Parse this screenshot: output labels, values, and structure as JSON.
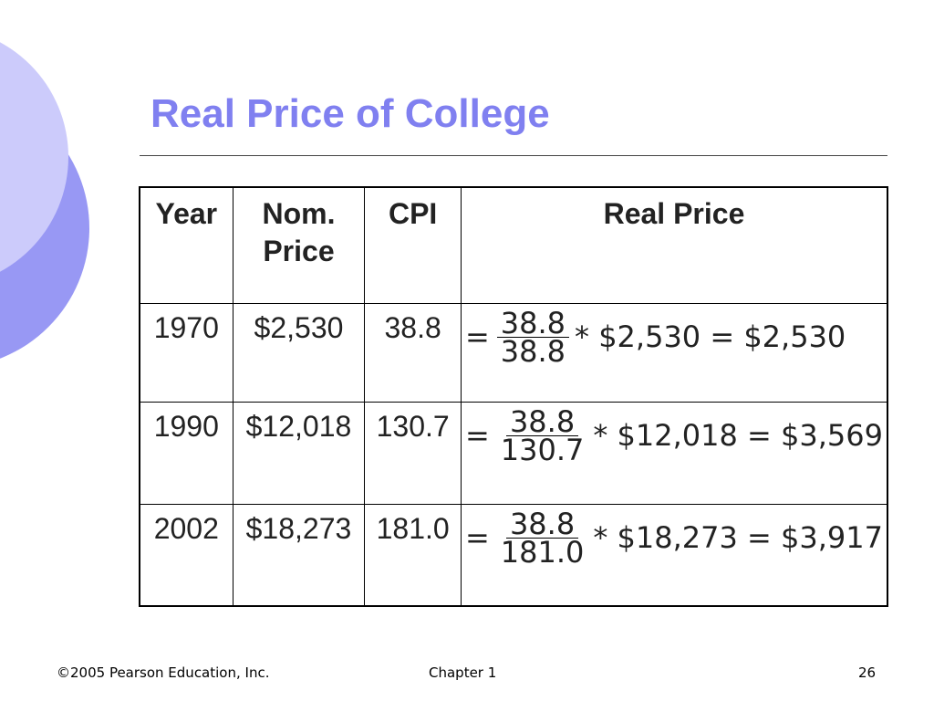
{
  "slide": {
    "title": "Real Price of College",
    "accent_color": "#8080f0"
  },
  "table": {
    "headers": [
      "Year",
      "Nom.\nPrice",
      "CPI",
      "Real Price"
    ],
    "rows": [
      {
        "year": "1970",
        "nominal": "$2,530",
        "cpi": "38.8",
        "formula": {
          "eq": "=",
          "num": "38.8",
          "den": "38.8",
          "rest": "* $2,530 = $2,530"
        }
      },
      {
        "year": "1990",
        "nominal": "$12,018",
        "cpi": "130.7",
        "formula": {
          "eq": "=",
          "num": "38.8",
          "den": "130.7",
          "rest": "* $12,018 = $3,569"
        }
      },
      {
        "year": "2002",
        "nominal": "$18,273",
        "cpi": "181.0",
        "formula": {
          "eq": "=",
          "num": "38.8",
          "den": "181.0",
          "rest": "* $18,273 = $3,917"
        }
      }
    ]
  },
  "footer": {
    "copyright": "©2005 Pearson Education, Inc.",
    "chapter": "Chapter 1",
    "page": "26"
  }
}
